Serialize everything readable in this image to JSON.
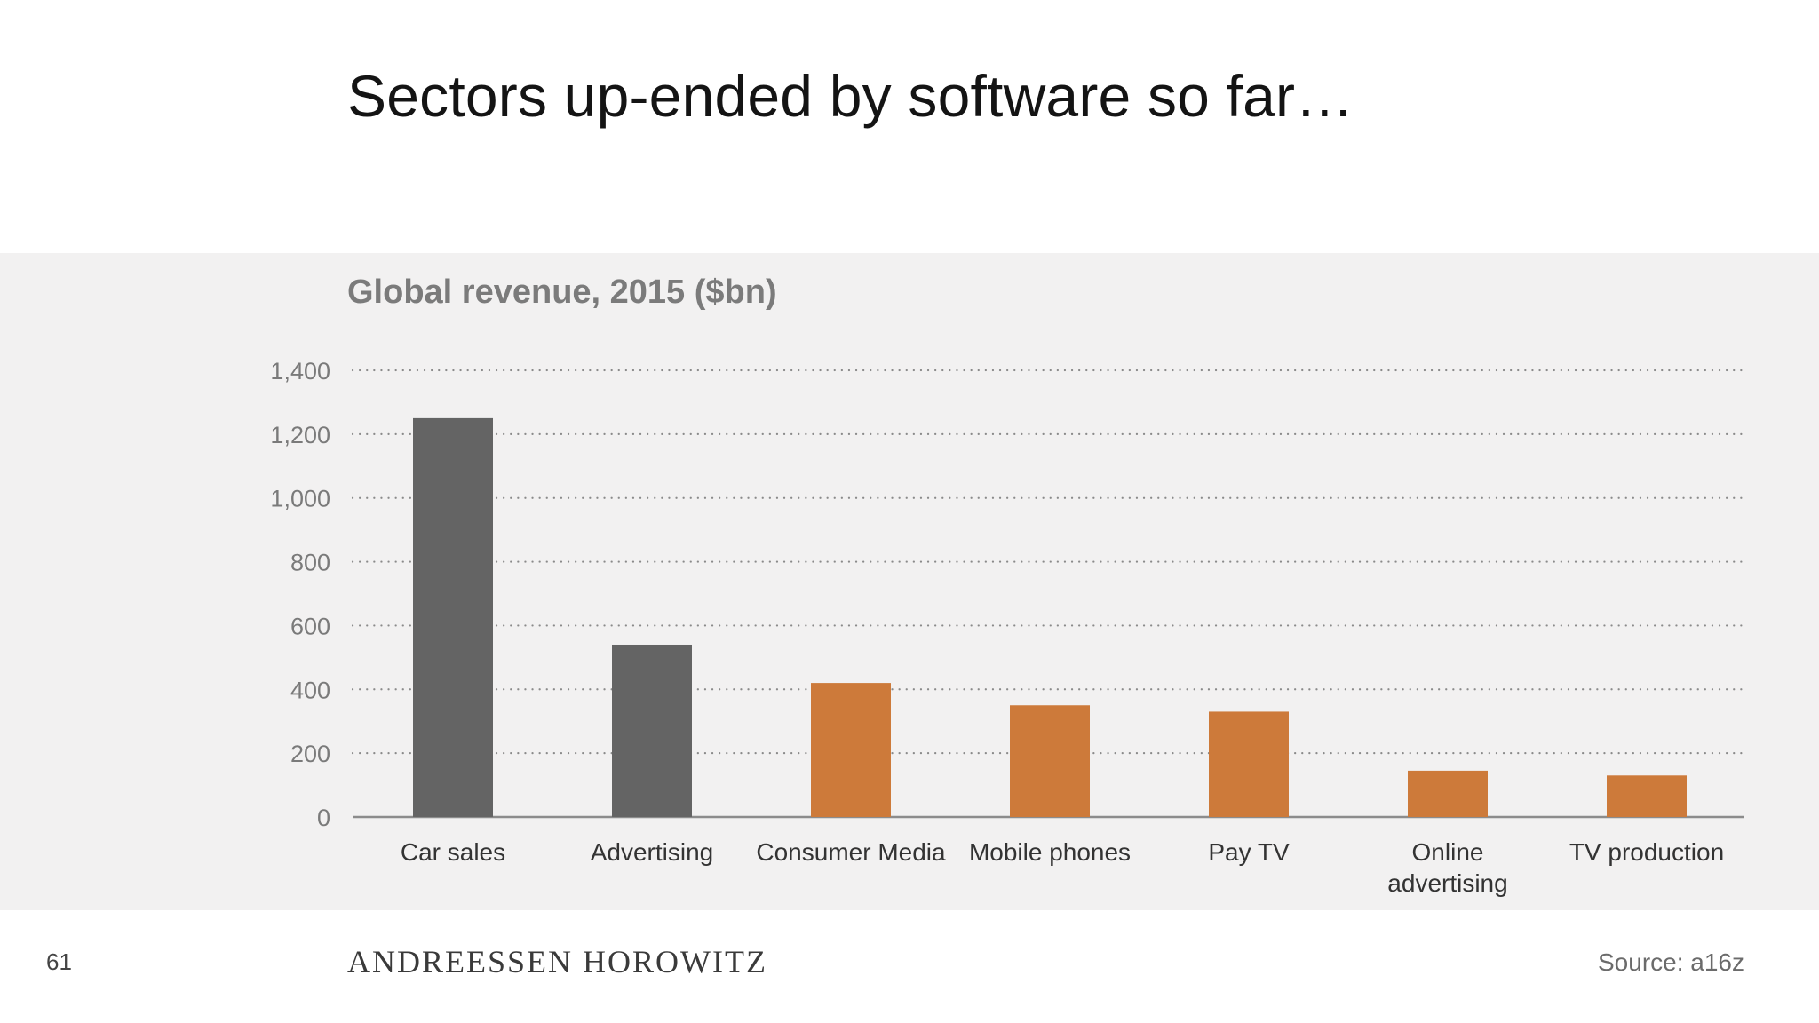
{
  "slide": {
    "title": "Sectors up-ended by software so far…",
    "page_number": "61",
    "brand": "ANDREESSEN HOROWITZ",
    "source": "Source: a16z"
  },
  "colors": {
    "gray_bar": "#646464",
    "orange_bar": "#cd7a3a",
    "panel_bg": "#f2f1f1"
  },
  "chart_data": {
    "type": "bar",
    "title": "Global revenue, 2015 ($bn)",
    "xlabel": "",
    "ylabel": "",
    "categories": [
      "Car sales",
      "Advertising",
      "Consumer Media",
      "Mobile phones",
      "Pay TV",
      "Online advertising",
      "TV production"
    ],
    "category_lines": [
      [
        "Car sales"
      ],
      [
        "Advertising"
      ],
      [
        "Consumer Media"
      ],
      [
        "Mobile phones"
      ],
      [
        "Pay TV"
      ],
      [
        "Online",
        "advertising"
      ],
      [
        "TV production"
      ]
    ],
    "values": [
      1250,
      540,
      420,
      350,
      330,
      145,
      130
    ],
    "bar_colors": [
      "gray",
      "gray",
      "orange",
      "orange",
      "orange",
      "orange",
      "orange"
    ],
    "ylim": [
      0,
      1400
    ],
    "yticks": [
      0,
      200,
      400,
      600,
      800,
      1000,
      1200,
      1400
    ],
    "ytick_labels": [
      "0",
      "200",
      "400",
      "600",
      "800",
      "1,000",
      "1,200",
      "1,400"
    ],
    "grid": "dotted horizontal",
    "legend": "none"
  }
}
